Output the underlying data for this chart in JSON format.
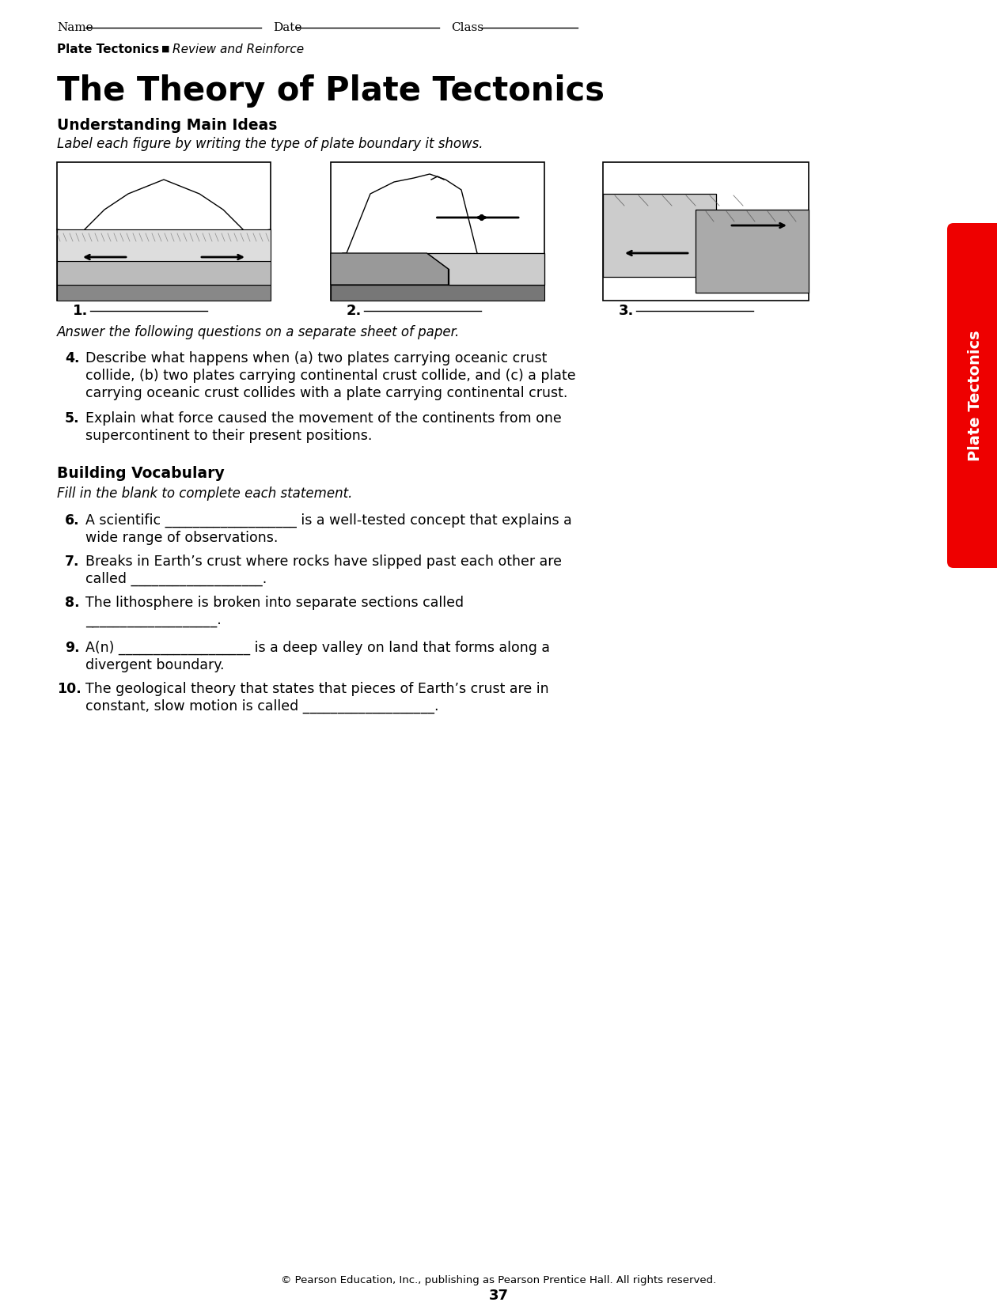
{
  "page_bg": "#ffffff",
  "title": "The Theory of Plate Tectonics",
  "subtitle_section1": "Understanding Main Ideas",
  "subtitle_italic1": "Label each figure by writing the type of plate boundary it shows.",
  "subtitle_section2": "Building Vocabulary",
  "subtitle_italic2": "Fill in the blank to complete each statement.",
  "header_bold": "Plate Tectonics",
  "header_separator": "■",
  "header_italic": "Review and Reinforce",
  "questions_intro": "Answer the following questions on a separate sheet of paper.",
  "q4_num": "4.",
  "q4_line1": "Describe what happens when (a) two plates carrying oceanic crust",
  "q4_line2": "collide, (b) two plates carrying continental crust collide, and (c) a plate",
  "q4_line3": "carrying oceanic crust collides with a plate carrying continental crust.",
  "q5_num": "5.",
  "q5_line1": "Explain what force caused the movement of the continents from one",
  "q5_line2": "supercontinent to their present positions.",
  "q6_num": "6.",
  "q6_line1": "A scientific ___________________ is a well-tested concept that explains a",
  "q6_line2": "wide range of observations.",
  "q7_num": "7.",
  "q7_line1": "Breaks in Earth’s crust where rocks have slipped past each other are",
  "q7_line2": "called ___________________.",
  "q8_num": "8.",
  "q8_line1": "The lithosphere is broken into separate sections called",
  "q8_line2": "___________________.",
  "q9_num": "9.",
  "q9_line1": "A(n) ___________________ is a deep valley on land that forms along a",
  "q9_line2": "divergent boundary.",
  "q10_num": "10.",
  "q10_line1": "The geological theory that states that pieces of Earth’s crust are in",
  "q10_line2": "constant, slow motion is called ___________________.",
  "footer": "© Pearson Education, Inc., publishing as Pearson Prentice Hall. All rights reserved.",
  "page_number": "37",
  "side_tab_text": "Plate Tectonics",
  "side_tab_color": "#ee0000",
  "name_label": "Name",
  "date_label": "Date",
  "class_label": "Class"
}
